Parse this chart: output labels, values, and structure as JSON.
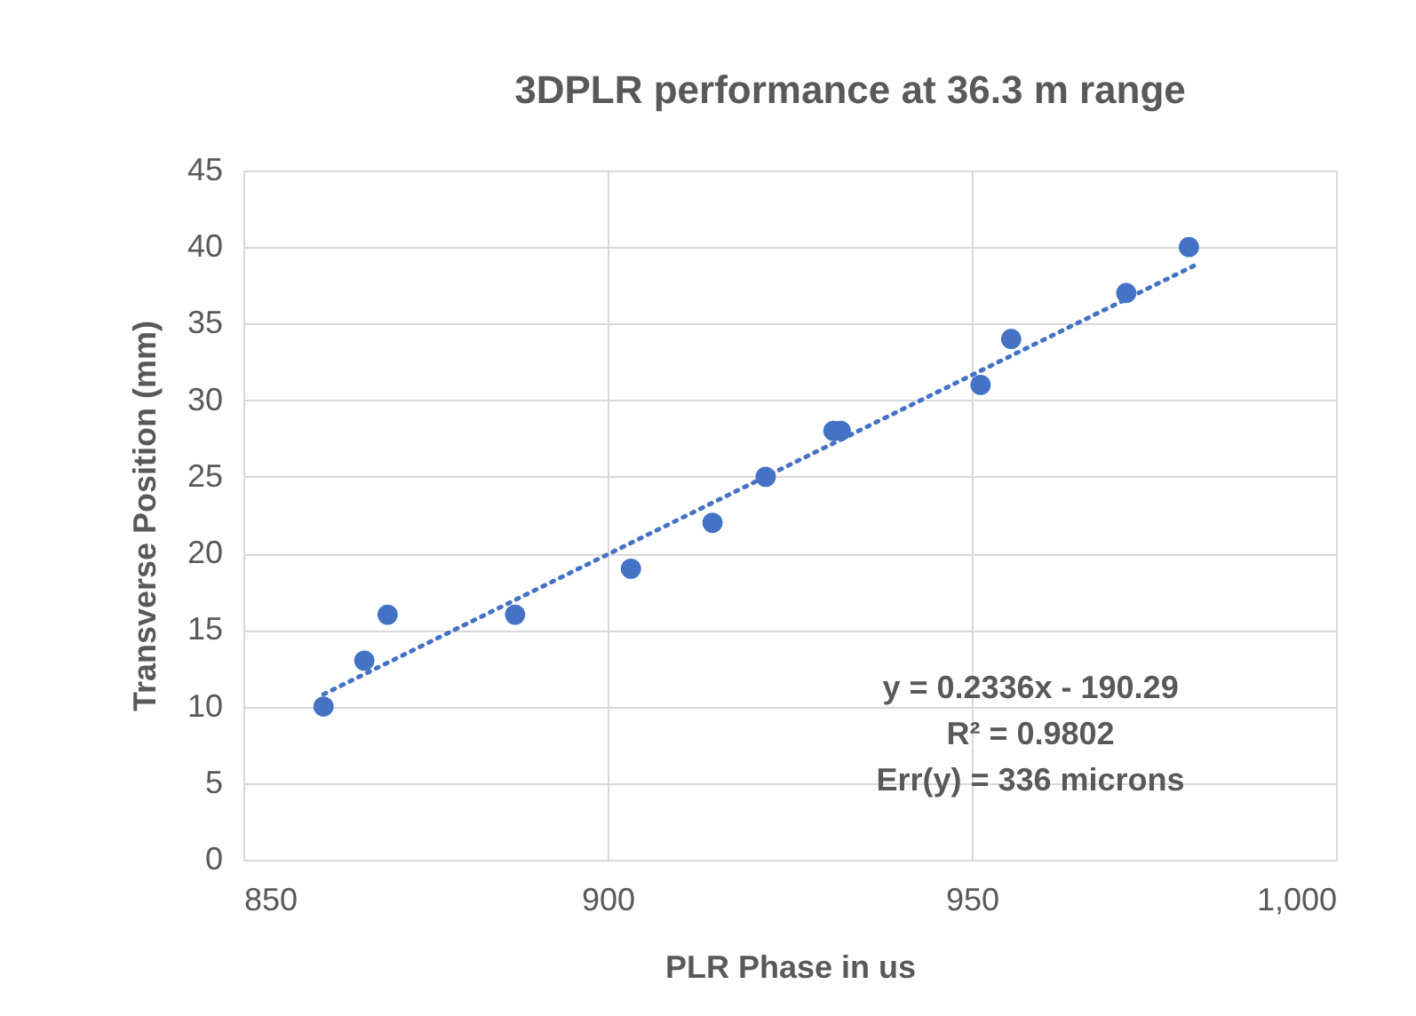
{
  "chart_data": {
    "type": "scatter",
    "title": "3DPLR performance at 36.3 m range",
    "xlabel": "PLR Phase in us",
    "ylabel": "Transverse Position (mm)",
    "x": [
      861,
      866.6,
      869.8,
      887.3,
      903.2,
      914.4,
      921.7,
      931,
      932,
      951.2,
      955.4,
      971.2,
      979.8
    ],
    "series": [
      {
        "color": "#4472c4",
        "marker": "circle",
        "values": [
          10,
          13,
          16,
          16,
          19,
          22,
          25,
          28,
          28,
          31,
          34,
          37,
          40
        ]
      },
      {
        "type": "line",
        "color": "#4472c4",
        "line_style": "dotted",
        "marker": "none",
        "x": [
          861,
          981
        ],
        "values": [
          10.8,
          38.9
        ]
      }
    ],
    "xlim": [
      850,
      1000
    ],
    "xticks": [
      850,
      900,
      950,
      {
        "value": 1000,
        "label": "1,000"
      }
    ],
    "ylim": [
      0,
      45
    ],
    "yticks": [
      0,
      5,
      10,
      15,
      20,
      25,
      30,
      35,
      40,
      45
    ],
    "grid": true,
    "annotations": [
      "y = 0.2336x - 190.29",
      "R² = 0.9802",
      "Err(y) = 336 microns"
    ]
  }
}
